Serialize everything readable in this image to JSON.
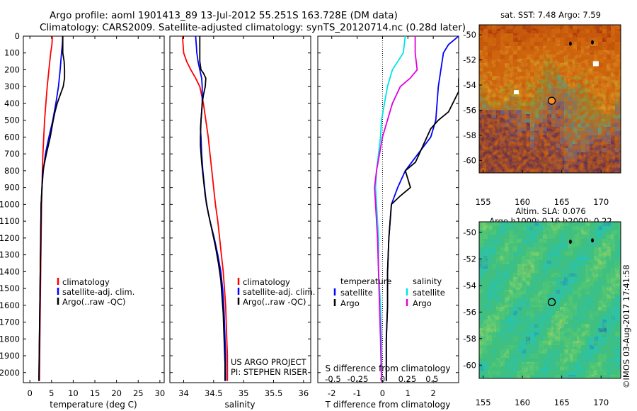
{
  "header": {
    "line1": "Argo profile: aoml 1901413_89 13-Jul-2012 55.251S 163.728E (DM data)",
    "line2": "Climatology: CARS2009. Satellite-adjusted climatology: synTS_20120714.nc (0.28d later)"
  },
  "colors": {
    "climatology": "#ff0000",
    "satellite": "#0000ff",
    "argo": "#000000",
    "sat_salinity": "#00e5e5",
    "argo_salinity": "#e000e0"
  },
  "chart_data": [
    {
      "id": "temperature",
      "type": "line",
      "xlabel": "temperature (deg C)",
      "xlim": [
        -1.5,
        31
      ],
      "ylim": [
        0,
        2060
      ],
      "xticks": [
        0,
        5,
        10,
        15,
        20,
        25,
        30
      ],
      "yticks": [
        0,
        100,
        200,
        300,
        400,
        500,
        600,
        700,
        800,
        900,
        1000,
        1100,
        1200,
        1300,
        1400,
        1500,
        1600,
        1700,
        1800,
        1900,
        2000
      ],
      "legend": [
        "climatology",
        "satellite-adj. clim.",
        "Argo(..raw -QC)"
      ],
      "series": [
        {
          "name": "climatology",
          "color": "#ff0000",
          "points": [
            [
              5.2,
              0
            ],
            [
              5.1,
              50
            ],
            [
              4.8,
              100
            ],
            [
              4.4,
              200
            ],
            [
              4.0,
              300
            ],
            [
              3.7,
              400
            ],
            [
              3.4,
              500
            ],
            [
              3.2,
              600
            ],
            [
              3.0,
              700
            ],
            [
              2.9,
              800
            ],
            [
              2.8,
              900
            ],
            [
              2.7,
              1000
            ],
            [
              2.6,
              1200
            ],
            [
              2.5,
              1400
            ],
            [
              2.4,
              1600
            ],
            [
              2.3,
              1800
            ],
            [
              2.2,
              2050
            ]
          ]
        },
        {
          "name": "satellite-adj. clim.",
          "color": "#0000ff",
          "points": [
            [
              7.6,
              0
            ],
            [
              7.5,
              50
            ],
            [
              7.3,
              100
            ],
            [
              7.0,
              200
            ],
            [
              6.6,
              300
            ],
            [
              6.0,
              400
            ],
            [
              5.3,
              500
            ],
            [
              4.4,
              600
            ],
            [
              3.6,
              700
            ],
            [
              3.1,
              800
            ],
            [
              2.8,
              900
            ],
            [
              2.6,
              1000
            ],
            [
              2.5,
              1200
            ],
            [
              2.4,
              1400
            ],
            [
              2.3,
              1600
            ],
            [
              2.2,
              1800
            ],
            [
              2.1,
              2050
            ]
          ]
        },
        {
          "name": "Argo(..raw -QC)",
          "color": "#000000",
          "points": [
            [
              7.6,
              0
            ],
            [
              7.6,
              50
            ],
            [
              7.6,
              100
            ],
            [
              7.9,
              150
            ],
            [
              8.0,
              200
            ],
            [
              8.0,
              250
            ],
            [
              7.7,
              300
            ],
            [
              7.0,
              350
            ],
            [
              6.3,
              400
            ],
            [
              5.8,
              450
            ],
            [
              5.4,
              500
            ],
            [
              4.7,
              600
            ],
            [
              3.8,
              700
            ],
            [
              3.0,
              800
            ],
            [
              2.8,
              900
            ],
            [
              2.6,
              1000
            ],
            [
              2.5,
              1200
            ],
            [
              2.4,
              1400
            ],
            [
              2.3,
              1600
            ],
            [
              2.2,
              1800
            ],
            [
              2.1,
              2050
            ]
          ]
        }
      ]
    },
    {
      "id": "salinity",
      "type": "line",
      "xlabel": "salinity",
      "xlim": [
        33.77,
        36.12
      ],
      "ylim": [
        0,
        2060
      ],
      "xticks": [
        34,
        34.5,
        35,
        35.5,
        36
      ],
      "legend": [
        "climatology",
        "satellite-adj. clim.",
        "Argo(..raw -QC)"
      ],
      "series": [
        {
          "name": "climatology",
          "color": "#ff0000",
          "points": [
            [
              33.98,
              0
            ],
            [
              34.0,
              100
            ],
            [
              34.05,
              150
            ],
            [
              34.12,
              200
            ],
            [
              34.2,
              250
            ],
            [
              34.27,
              300
            ],
            [
              34.33,
              400
            ],
            [
              34.37,
              500
            ],
            [
              34.41,
              600
            ],
            [
              34.44,
              700
            ],
            [
              34.47,
              800
            ],
            [
              34.5,
              900
            ],
            [
              34.53,
              1000
            ],
            [
              34.57,
              1100
            ],
            [
              34.6,
              1200
            ],
            [
              34.63,
              1300
            ],
            [
              34.66,
              1400
            ],
            [
              34.68,
              1500
            ],
            [
              34.7,
              1600
            ],
            [
              34.71,
              1700
            ],
            [
              34.72,
              1800
            ],
            [
              34.73,
              1900
            ],
            [
              34.73,
              2050
            ]
          ]
        },
        {
          "name": "satellite-adj. clim.",
          "color": "#0000ff",
          "points": [
            [
              34.2,
              0
            ],
            [
              34.21,
              50
            ],
            [
              34.22,
              100
            ],
            [
              34.24,
              150
            ],
            [
              34.27,
              200
            ],
            [
              34.3,
              250
            ],
            [
              34.31,
              300
            ],
            [
              34.31,
              350
            ],
            [
              34.31,
              400
            ],
            [
              34.3,
              450
            ],
            [
              34.29,
              500
            ],
            [
              34.28,
              550
            ],
            [
              34.29,
              600
            ],
            [
              34.3,
              700
            ],
            [
              34.32,
              800
            ],
            [
              34.35,
              900
            ],
            [
              34.38,
              1000
            ],
            [
              34.44,
              1100
            ],
            [
              34.51,
              1200
            ],
            [
              34.57,
              1300
            ],
            [
              34.62,
              1400
            ],
            [
              34.65,
              1500
            ],
            [
              34.67,
              1600
            ],
            [
              34.68,
              1700
            ],
            [
              34.69,
              1800
            ],
            [
              34.7,
              1900
            ],
            [
              34.7,
              2050
            ]
          ]
        },
        {
          "name": "Argo(..raw -QC)",
          "color": "#000000",
          "points": [
            [
              34.27,
              0
            ],
            [
              34.27,
              100
            ],
            [
              34.27,
              150
            ],
            [
              34.29,
              200
            ],
            [
              34.33,
              220
            ],
            [
              34.37,
              250
            ],
            [
              34.36,
              300
            ],
            [
              34.33,
              350
            ],
            [
              34.31,
              400
            ],
            [
              34.3,
              450
            ],
            [
              34.29,
              500
            ],
            [
              34.28,
              600
            ],
            [
              34.28,
              650
            ],
            [
              34.3,
              750
            ],
            [
              34.33,
              850
            ],
            [
              34.36,
              950
            ],
            [
              34.41,
              1050
            ],
            [
              34.47,
              1150
            ],
            [
              34.53,
              1250
            ],
            [
              34.58,
              1350
            ],
            [
              34.62,
              1450
            ],
            [
              34.64,
              1550
            ],
            [
              34.66,
              1650
            ],
            [
              34.67,
              1750
            ],
            [
              34.68,
              1850
            ],
            [
              34.69,
              1950
            ],
            [
              34.69,
              2050
            ]
          ]
        }
      ],
      "annotation": [
        "US ARGO PROJECT",
        "PI: STEPHEN RISER"
      ]
    },
    {
      "id": "differences",
      "type": "line",
      "xlabel": "T difference from climatology",
      "x2label": "S difference from climatology",
      "xlim": [
        -2.55,
        3.0
      ],
      "ylim": [
        0,
        2060
      ],
      "xticks": [
        -2,
        -1,
        0,
        1,
        2
      ],
      "x2ticks": [
        -0.5,
        -0.25,
        0,
        0.25,
        0.5
      ],
      "x2_to_x": 3.9,
      "legend_titles": [
        "temperature",
        "salinity"
      ],
      "legend": [
        "satellite",
        "Argo",
        "satellite",
        "Argo"
      ],
      "series": [
        {
          "name": "satellite",
          "quantity": "temperature",
          "color": "#0000ff",
          "points": [
            [
              3.0,
              0
            ],
            [
              2.6,
              50
            ],
            [
              2.4,
              100
            ],
            [
              2.3,
              200
            ],
            [
              2.2,
              300
            ],
            [
              2.15,
              400
            ],
            [
              2.1,
              500
            ],
            [
              1.9,
              600
            ],
            [
              1.4,
              700
            ],
            [
              0.9,
              800
            ],
            [
              0.6,
              900
            ],
            [
              0.35,
              1000
            ],
            [
              0.3,
              1100
            ],
            [
              0.25,
              1200
            ],
            [
              0.2,
              1400
            ],
            [
              0.2,
              1600
            ],
            [
              0.15,
              1800
            ],
            [
              0.15,
              2050
            ]
          ]
        },
        {
          "name": "Argo",
          "quantity": "temperature",
          "color": "#000000",
          "points": [
            [
              3.0,
              250
            ],
            [
              3.0,
              330
            ],
            [
              2.6,
              450
            ],
            [
              2.2,
              500
            ],
            [
              1.9,
              550
            ],
            [
              1.6,
              650
            ],
            [
              1.3,
              750
            ],
            [
              0.9,
              800
            ],
            [
              1.1,
              900
            ],
            [
              0.7,
              950
            ],
            [
              0.35,
              1000
            ],
            [
              0.3,
              1100
            ],
            [
              0.25,
              1200
            ],
            [
              0.2,
              1400
            ],
            [
              0.2,
              1600
            ],
            [
              0.15,
              1800
            ],
            [
              0.15,
              2050
            ]
          ]
        },
        {
          "name": "satellite",
          "quantity": "salinity",
          "color": "#00e5e5",
          "points": [
            [
              0.23,
              0
            ],
            [
              0.21,
              100
            ],
            [
              0.1,
              200
            ],
            [
              0.05,
              300
            ],
            [
              0.02,
              400
            ],
            [
              -0.01,
              500
            ],
            [
              -0.02,
              600
            ],
            [
              -0.04,
              700
            ],
            [
              -0.06,
              800
            ],
            [
              -0.07,
              900
            ],
            [
              -0.06,
              1000
            ],
            [
              -0.05,
              1100
            ],
            [
              -0.04,
              1200
            ],
            [
              -0.04,
              1400
            ],
            [
              -0.02,
              1600
            ],
            [
              -0.01,
              1800
            ],
            [
              -0.01,
              2050
            ]
          ]
        },
        {
          "name": "Argo",
          "quantity": "salinity",
          "color": "#e000e0",
          "points": [
            [
              0.33,
              0
            ],
            [
              0.33,
              100
            ],
            [
              0.35,
              200
            ],
            [
              0.28,
              250
            ],
            [
              0.18,
              300
            ],
            [
              0.1,
              400
            ],
            [
              0.05,
              500
            ],
            [
              0.0,
              600
            ],
            [
              -0.03,
              700
            ],
            [
              -0.06,
              800
            ],
            [
              -0.08,
              900
            ],
            [
              -0.07,
              1000
            ],
            [
              -0.06,
              1100
            ],
            [
              -0.05,
              1200
            ],
            [
              -0.04,
              1400
            ],
            [
              -0.03,
              1600
            ],
            [
              -0.02,
              1800
            ],
            [
              -0.01,
              2050
            ]
          ]
        }
      ]
    },
    {
      "id": "sst-map",
      "type": "heatmap",
      "title": "sat. SST: 7.48  Argo: 7.59",
      "xlim": [
        154.5,
        172.5
      ],
      "ylim": [
        -61,
        -49.2
      ],
      "xticks": [
        155,
        160,
        165,
        170
      ],
      "yticks": [
        -50,
        -52,
        -54,
        -56,
        -58,
        -60
      ],
      "float_position": [
        163.728,
        -55.251
      ],
      "palette": [
        "#00008f",
        "#0020c0",
        "#0060ff",
        "#00a0ff",
        "#00dede",
        "#2ad0a0",
        "#4cd060",
        "#90d840",
        "#e0d030",
        "#f0a020",
        "#e07010",
        "#c04000",
        "#8a0000"
      ]
    },
    {
      "id": "sla-map",
      "type": "heatmap",
      "title": "Altim. SLA: 0.076",
      "subtitle": "Argo h1000: 0.16 h2000: 0.22",
      "xlim": [
        154.5,
        172.5
      ],
      "ylim": [
        -61,
        -49.2
      ],
      "xticks": [
        155,
        160,
        165,
        170
      ],
      "yticks": [
        -50,
        -52,
        -54,
        -56,
        -58,
        -60
      ],
      "float_position": [
        163.728,
        -55.251
      ],
      "palette": [
        "#0030e0",
        "#0080ff",
        "#00c8ff",
        "#20c0c0",
        "#40c080",
        "#70d060",
        "#b0e050",
        "#e8e040",
        "#f0b030"
      ]
    }
  ],
  "stamp": "©IMOS 03-Aug-2017 17:41:58"
}
